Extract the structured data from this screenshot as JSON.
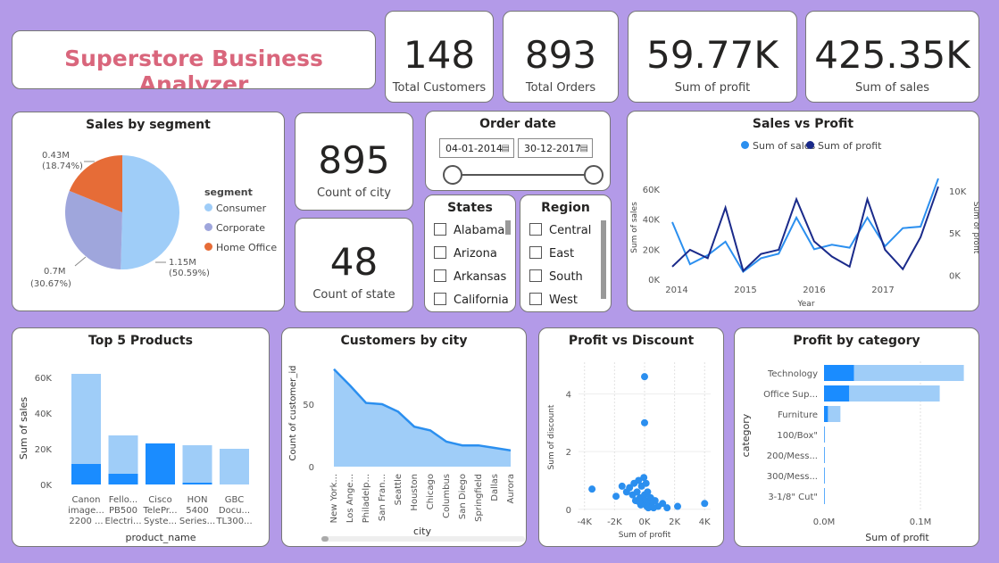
{
  "header": {
    "title": "Superstore Business Analyzer"
  },
  "kpis": {
    "customers": {
      "value": "148",
      "label": "Total Customers"
    },
    "orders": {
      "value": "893",
      "label": "Total Orders"
    },
    "profit": {
      "value": "59.77K",
      "label": "Sum of profit"
    },
    "sales": {
      "value": "425.35K",
      "label": "Sum of sales"
    },
    "city": {
      "value": "895",
      "label": "Count of city"
    },
    "state": {
      "value": "48",
      "label": "Count of state"
    }
  },
  "colors": {
    "light": "#9fcdf8",
    "medium": "#9fa6dc",
    "orange": "#e66c37",
    "blue": "#2b8fef",
    "navy": "#1a2a8a",
    "brand": "#d9667c"
  },
  "order_date": {
    "title": "Order date",
    "start": "04-01-2014",
    "end": "30-12-2017",
    "calendar_icon": "calendar-icon"
  },
  "states_slicer": {
    "title": "States",
    "items": [
      "Alabama",
      "Arizona",
      "Arkansas",
      "California"
    ]
  },
  "region_slicer": {
    "title": "Region",
    "items": [
      "Central",
      "East",
      "South",
      "West"
    ]
  },
  "chart_data": [
    {
      "id": "sales_by_segment",
      "type": "pie",
      "title": "Sales by segment",
      "legend_title": "segment",
      "slices": [
        {
          "name": "Consumer",
          "value": 1.15,
          "label": "1.15M",
          "pct": "(50.59%)",
          "color": "#9fcdf8"
        },
        {
          "name": "Corporate",
          "value": 0.7,
          "label": "0.7M",
          "pct": "(30.67%)",
          "color": "#9fa6dc"
        },
        {
          "name": "Home Office",
          "value": 0.43,
          "label": "0.43M",
          "pct": "(18.74%)",
          "color": "#e66c37"
        }
      ]
    },
    {
      "id": "sales_vs_profit",
      "type": "line",
      "title": "Sales vs Profit",
      "xlabel": "Year",
      "ylabel": "Sum of sales",
      "y2label": "Sum of profit",
      "x_ticks": [
        "2014",
        "2015",
        "2016",
        "2017"
      ],
      "y_ticks": [
        "0K",
        "20K",
        "40K",
        "60K"
      ],
      "y2_ticks": [
        "0K",
        "5K",
        "10K"
      ],
      "ylim": [
        0,
        70000
      ],
      "y2lim": [
        -500,
        12000
      ],
      "series": [
        {
          "name": "Sum of sales",
          "axis": "left",
          "color": "#2b8fef",
          "values": [
            38000,
            10000,
            16000,
            25000,
            5000,
            14000,
            17000,
            41000,
            20000,
            23000,
            21000,
            41000,
            22000,
            34000,
            35000,
            67000
          ]
        },
        {
          "name": "Sum of profit",
          "axis": "right",
          "color": "#1a2a8a",
          "values": [
            1000,
            3000,
            2000,
            8000,
            500,
            2500,
            3000,
            9000,
            4000,
            2200,
            1000,
            9000,
            3000,
            700,
            4500,
            10500
          ]
        }
      ]
    },
    {
      "id": "top_5_products",
      "type": "bar",
      "title": "Top 5 Products",
      "xlabel": "product_name",
      "ylabel": "Sum of sales",
      "y_ticks": [
        "0K",
        "20K",
        "40K",
        "60K"
      ],
      "ylim": [
        0,
        65000
      ],
      "categories": [
        [
          "Canon",
          "image...",
          "2200 ..."
        ],
        [
          "Fello...",
          "PB500",
          "Electri..."
        ],
        [
          "Cisco",
          "TelePr...",
          "Syste..."
        ],
        [
          "HON",
          "5400",
          "Series..."
        ],
        [
          "GBC",
          "Docu...",
          "TL300..."
        ]
      ],
      "series": [
        {
          "name": "total",
          "values": [
            62000,
            27500,
            23000,
            22000,
            20000
          ],
          "color": "#9fcdf8"
        },
        {
          "name": "highlight",
          "values": [
            11500,
            6000,
            23000,
            1000,
            0
          ],
          "color": "#1a8cff"
        }
      ]
    },
    {
      "id": "customers_by_city",
      "type": "area",
      "title": "Customers by city",
      "xlabel": "city",
      "ylabel": "Count of customer_id",
      "y_ticks": [
        "0",
        "50"
      ],
      "ylim": [
        0,
        85
      ],
      "categories": [
        "New York...",
        "Los Ange...",
        "Philadelp...",
        "San Fran...",
        "Seattle",
        "Houston",
        "Chicago",
        "Columbus",
        "San Diego",
        "Springfield",
        "Dallas",
        "Aurora"
      ],
      "values": [
        78,
        65,
        51,
        50,
        44,
        32,
        29,
        20,
        17,
        17,
        15,
        13
      ]
    },
    {
      "id": "profit_vs_discount",
      "type": "scatter",
      "title": "Profit vs Discount",
      "xlabel": "Sum of profit",
      "ylabel": "Sum of discount",
      "x_ticks": [
        "-4K",
        "-2K",
        "0K",
        "2K",
        "4K"
      ],
      "y_ticks": [
        "0",
        "2",
        "4"
      ],
      "xlim": [
        -4400,
        4400
      ],
      "ylim": [
        -0.1,
        5.1
      ],
      "points": [
        [
          0,
          4.6
        ],
        [
          0,
          3.0
        ],
        [
          -3500,
          0.7
        ],
        [
          -1900,
          0.45
        ],
        [
          -1500,
          0.8
        ],
        [
          -1200,
          0.6
        ],
        [
          -1000,
          0.75
        ],
        [
          -800,
          0.5
        ],
        [
          -700,
          0.9
        ],
        [
          -600,
          0.3
        ],
        [
          -500,
          0.6
        ],
        [
          -400,
          1.0
        ],
        [
          -300,
          0.4
        ],
        [
          -200,
          0.8
        ],
        [
          -100,
          0.2
        ],
        [
          -50,
          1.1
        ],
        [
          0,
          0.5
        ],
        [
          50,
          0.3
        ],
        [
          100,
          0.9
        ],
        [
          150,
          0.1
        ],
        [
          200,
          0.6
        ],
        [
          300,
          0.2
        ],
        [
          400,
          0.4
        ],
        [
          500,
          0.1
        ],
        [
          700,
          0.3
        ],
        [
          900,
          0.1
        ],
        [
          1200,
          0.2
        ],
        [
          1500,
          0.05
        ],
        [
          2200,
          0.1
        ],
        [
          4000,
          0.2
        ],
        [
          -250,
          0.15
        ],
        [
          250,
          0.05
        ],
        [
          -350,
          0.25
        ],
        [
          600,
          0.05
        ]
      ]
    },
    {
      "id": "profit_by_category",
      "type": "bar",
      "orientation": "horizontal",
      "title": "Profit by category",
      "xlabel": "Sum of profit",
      "ylabel": "category",
      "x_ticks": [
        "0.0M",
        "0.1M"
      ],
      "xlim": [
        0,
        0.15
      ],
      "categories": [
        "Technology",
        "Office Sup...",
        "Furniture",
        "100/Box\"",
        "200/Mess...",
        "300/Mess...",
        "3-1/8\" Cut\""
      ],
      "series": [
        {
          "name": "total",
          "values": [
            0.145,
            0.12,
            0.017,
            0.001,
            0.0006,
            0.0005,
            0.0004
          ],
          "color": "#9fcdf8"
        },
        {
          "name": "highlight",
          "values": [
            0.031,
            0.026,
            0.004,
            0.0003,
            0.0002,
            0.0002,
            0.0001
          ],
          "color": "#1a8cff"
        }
      ]
    }
  ]
}
